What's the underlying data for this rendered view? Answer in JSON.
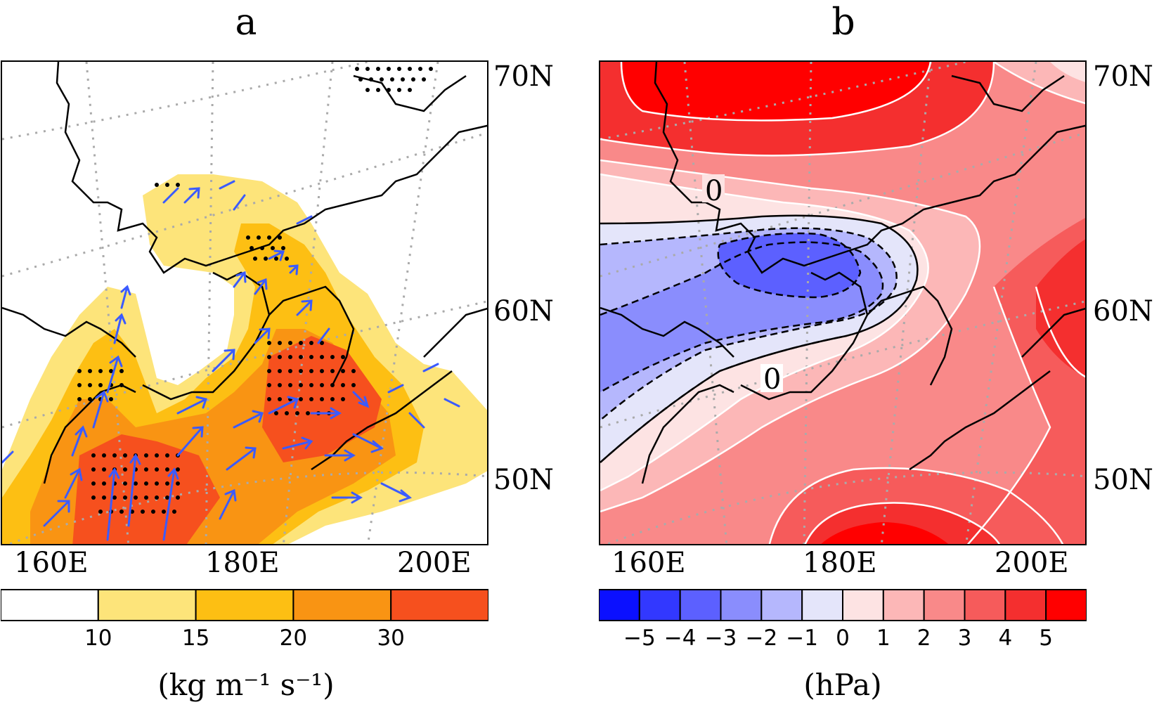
{
  "panels": {
    "a": {
      "title": "a",
      "lat_labels": [
        "70N",
        "60N",
        "50N"
      ],
      "lon_labels": [
        "160E",
        "180E",
        "200E"
      ],
      "colorbar": {
        "colors": [
          "#ffffff",
          "#fde47a",
          "#fdbf13",
          "#f99413",
          "#f6501e"
        ],
        "ticks": [
          "10",
          "15",
          "20",
          "30"
        ],
        "units": "(kg m⁻¹ s⁻¹)"
      },
      "vector_color": "#3b5bff"
    },
    "b": {
      "title": "b",
      "lat_labels": [
        "70N",
        "60N",
        "50N"
      ],
      "lon_labels": [
        "160E",
        "180E",
        "200E"
      ],
      "contour_labels": [
        "0",
        "0"
      ],
      "colorbar": {
        "colors": [
          "#0b10ff",
          "#3238ff",
          "#5c60ff",
          "#8a8dfd",
          "#b5b7fd",
          "#e4e5fa",
          "#fde3e3",
          "#fcb7b7",
          "#f98989",
          "#f65b5b",
          "#f42f2f",
          "#ff0000"
        ],
        "ticks": [
          "−5",
          "−4",
          "−3",
          "−2",
          "−1",
          "0",
          "1",
          "2",
          "3",
          "4",
          "5"
        ],
        "units": "(hPa)"
      }
    }
  }
}
